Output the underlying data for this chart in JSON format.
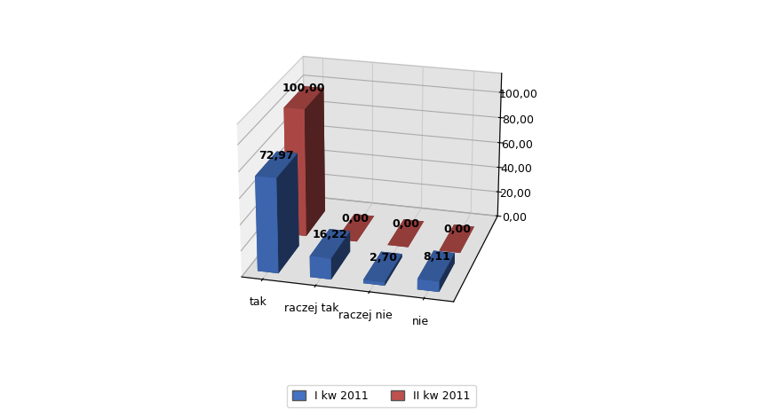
{
  "categories": [
    "tak",
    "raczej tak",
    "raczej nie",
    "nie"
  ],
  "series": [
    {
      "label": "I kw 2011",
      "color": "#4472C4",
      "values": [
        72.97,
        16.22,
        2.7,
        8.11
      ]
    },
    {
      "label": "II kw 2011",
      "color": "#C0504D",
      "values": [
        100.0,
        0.0,
        0.0,
        0.0
      ]
    }
  ],
  "ylim": [
    0,
    115
  ],
  "yticks": [
    0.0,
    20.0,
    40.0,
    60.0,
    80.0,
    100.0
  ],
  "background_color": "#FFFFFF",
  "floor_color": "#C0C0C0",
  "left_wall_color": "#B0B0B0",
  "back_wall_color": "#E8E8E8",
  "label_fontsize": 9,
  "bar_label_fontsize": 9,
  "legend_fontsize": 9,
  "elev": 22,
  "azim": -75
}
